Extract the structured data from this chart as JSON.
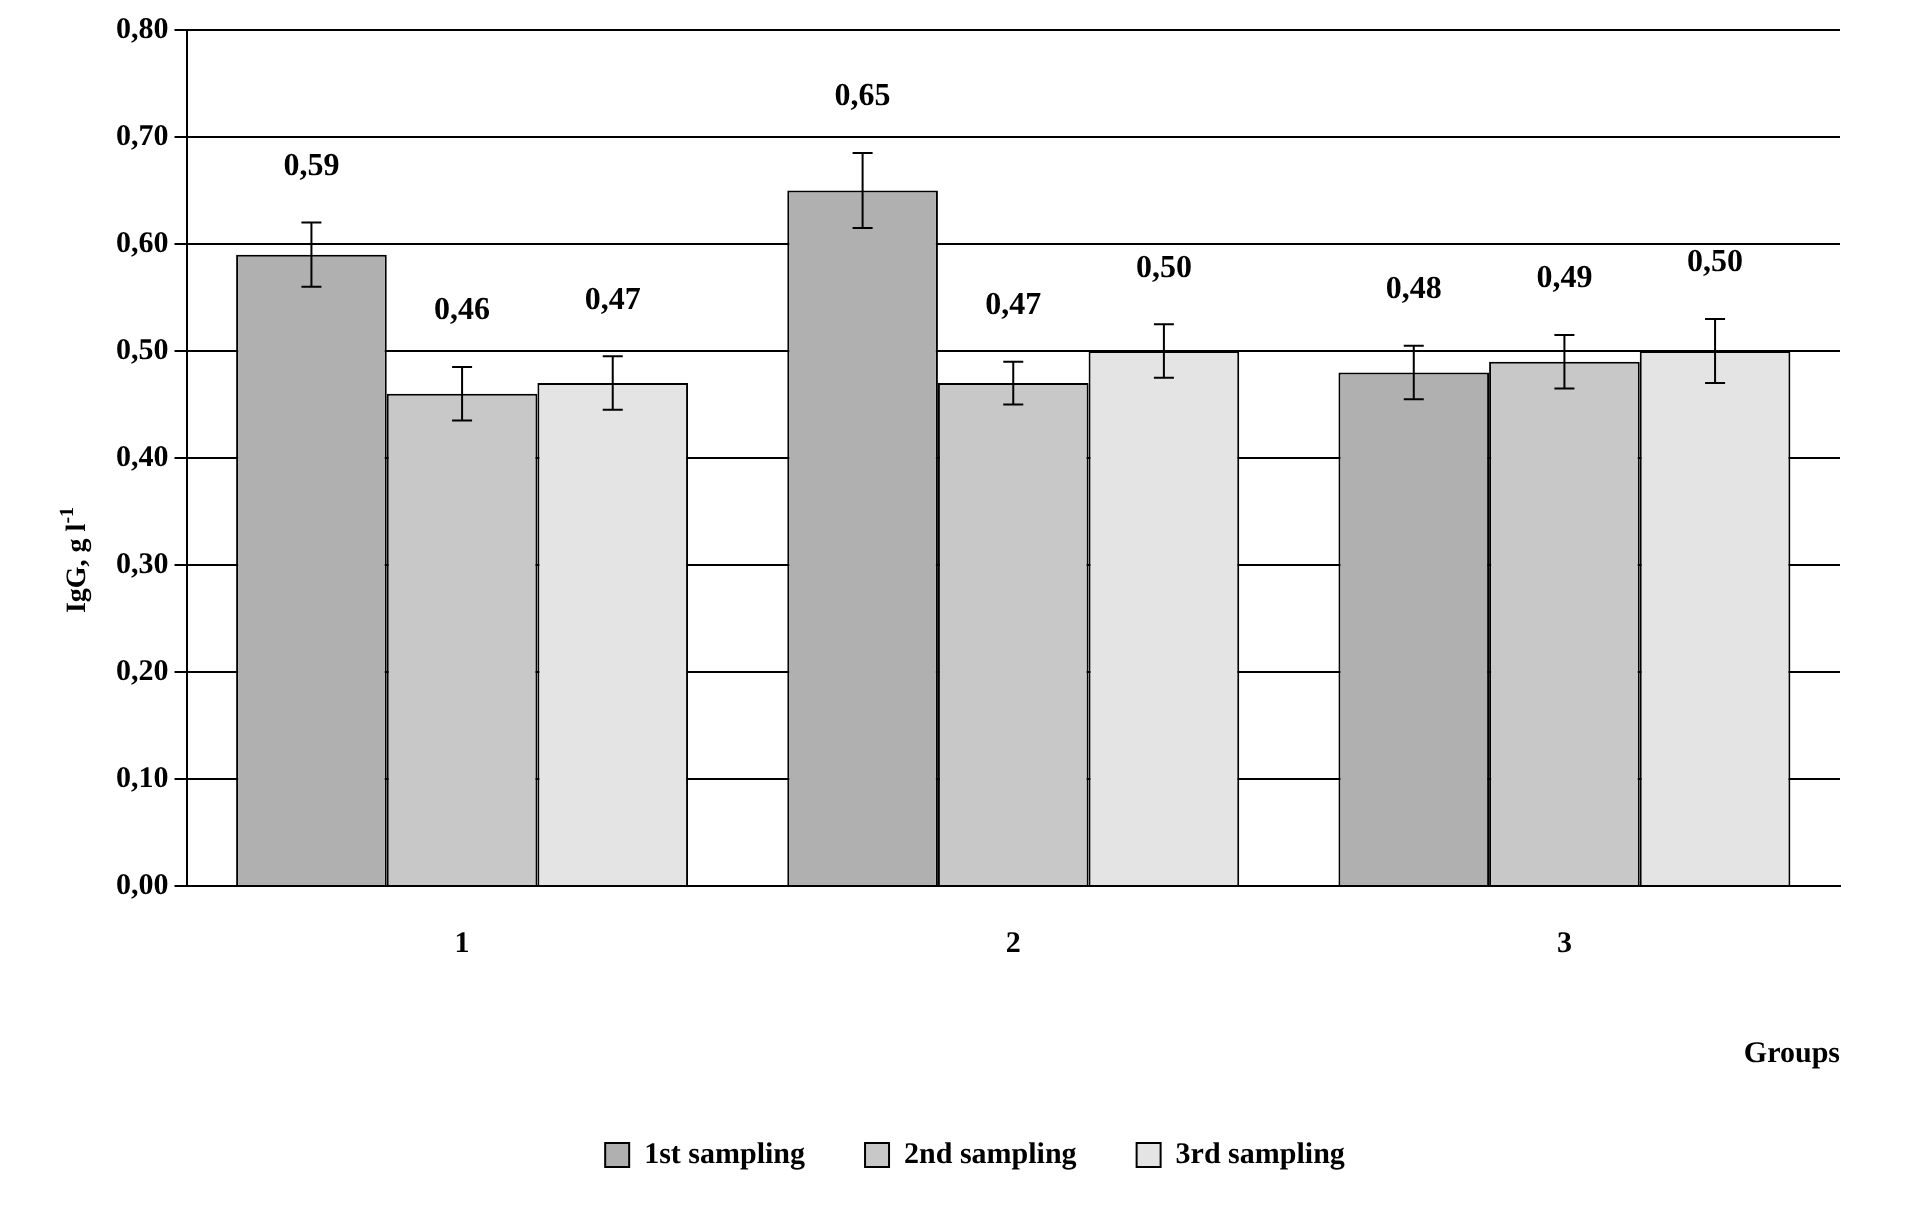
{
  "chart_data": {
    "type": "bar",
    "xlabel": "Groups",
    "ylabel": "IgG, g l$^{-1}$",
    "categories": [
      "1",
      "2",
      "3"
    ],
    "series": [
      {
        "name": "1st sampling",
        "color": "#b0b0b0",
        "values": [
          0.59,
          0.65,
          0.48
        ],
        "errors": [
          0.03,
          0.035,
          0.025
        ],
        "value_labels": [
          "0,59",
          "0,65",
          "0,48"
        ]
      },
      {
        "name": "2nd sampling",
        "color": "#c8c8c8",
        "values": [
          0.46,
          0.47,
          0.49
        ],
        "errors": [
          0.025,
          0.02,
          0.025
        ],
        "value_labels": [
          "0,46",
          "0,47",
          "0,49"
        ]
      },
      {
        "name": "3rd sampling",
        "color": "#e4e4e4",
        "values": [
          0.47,
          0.5,
          0.5
        ],
        "errors": [
          0.025,
          0.025,
          0.03
        ],
        "value_labels": [
          "0,47",
          "0,50",
          "0,50"
        ]
      }
    ],
    "ylim": [
      0,
      0.8
    ],
    "yticks": [
      {
        "value": 0,
        "label": "0,00"
      },
      {
        "value": 0.1,
        "label": "0,10"
      },
      {
        "value": 0.2,
        "label": "0,20"
      },
      {
        "value": 0.3,
        "label": "0,30"
      },
      {
        "value": 0.4,
        "label": "0,40"
      },
      {
        "value": 0.5,
        "label": "0,50"
      },
      {
        "value": 0.6,
        "label": "0,60"
      },
      {
        "value": 0.7,
        "label": "0,70"
      },
      {
        "value": 0.8,
        "label": "0,80"
      }
    ],
    "grid": "y",
    "legend": "bottom"
  }
}
